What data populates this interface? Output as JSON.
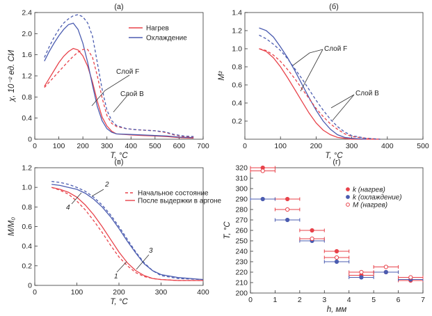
{
  "chart_data": [
    {
      "type": "line",
      "panel_label": "(а)",
      "xlabel": "T, °C",
      "ylabel": "χ, 10⁻² ед. СИ",
      "xlim": [
        0,
        700
      ],
      "ylim": [
        0,
        2.4
      ],
      "xticks": [
        0,
        100,
        200,
        300,
        400,
        500,
        600,
        700
      ],
      "yticks": [
        0,
        0.4,
        0.8,
        1.2,
        1.6,
        2.0,
        2.4
      ],
      "ytick_labels": [
        "0",
        "0.4",
        "0.8",
        "1.2",
        "1.6",
        "2.0",
        "2.4"
      ],
      "legend": [
        {
          "label": "Нагрев",
          "color": "#e8424a"
        },
        {
          "label": "Охлаждение",
          "color": "#4b5cb0"
        }
      ],
      "annotations": [
        "Слой F",
        "Слой B"
      ],
      "series": [
        {
          "name": "Нагрев",
          "layer": "Слой F",
          "color": "#e8424a",
          "dashed": false,
          "x": [
            40,
            60,
            80,
            100,
            120,
            140,
            160,
            180,
            200,
            220,
            240,
            260,
            280,
            300,
            320,
            340,
            400,
            450,
            500,
            550,
            600,
            660
          ],
          "y": [
            1.0,
            1.15,
            1.3,
            1.45,
            1.57,
            1.66,
            1.72,
            1.69,
            1.58,
            1.38,
            1.08,
            0.72,
            0.42,
            0.25,
            0.15,
            0.1,
            0.08,
            0.07,
            0.06,
            0.05,
            0.03,
            0.02
          ]
        },
        {
          "name": "Охлаждение",
          "layer": "Слой F",
          "color": "#4b5cb0",
          "dashed": false,
          "x": [
            40,
            60,
            80,
            100,
            120,
            140,
            160,
            180,
            200,
            220,
            240,
            260,
            280,
            300,
            320,
            340,
            400,
            450,
            500,
            550,
            600,
            660
          ],
          "y": [
            1.48,
            1.66,
            1.82,
            1.96,
            2.08,
            2.17,
            2.2,
            2.08,
            1.82,
            1.45,
            1.02,
            0.62,
            0.35,
            0.2,
            0.13,
            0.1,
            0.09,
            0.08,
            0.07,
            0.06,
            0.04,
            0.03
          ]
        },
        {
          "name": "Нагрев",
          "layer": "Слой B",
          "color": "#e8424a",
          "dashed": true,
          "x": [
            40,
            60,
            80,
            100,
            120,
            140,
            160,
            180,
            200,
            220,
            240,
            260,
            280,
            300,
            320,
            340,
            380,
            420,
            460,
            500,
            540,
            580,
            620,
            660
          ],
          "y": [
            0.98,
            1.08,
            1.18,
            1.28,
            1.38,
            1.48,
            1.57,
            1.65,
            1.7,
            1.7,
            1.55,
            1.2,
            0.78,
            0.45,
            0.3,
            0.24,
            0.2,
            0.18,
            0.17,
            0.16,
            0.13,
            0.08,
            0.05,
            0.04
          ]
        },
        {
          "name": "Охлаждение",
          "layer": "Слой B",
          "color": "#4b5cb0",
          "dashed": true,
          "x": [
            40,
            60,
            80,
            100,
            120,
            140,
            160,
            180,
            200,
            220,
            240,
            260,
            280,
            300,
            320,
            340,
            380,
            420,
            460,
            500,
            540,
            580,
            620,
            660
          ],
          "y": [
            1.55,
            1.75,
            1.93,
            2.08,
            2.2,
            2.28,
            2.34,
            2.36,
            2.32,
            2.2,
            1.95,
            1.45,
            0.95,
            0.55,
            0.35,
            0.26,
            0.2,
            0.18,
            0.17,
            0.16,
            0.14,
            0.09,
            0.06,
            0.05
          ]
        }
      ]
    },
    {
      "type": "line",
      "panel_label": "(б)",
      "xlabel": "T, °C",
      "ylabel": "M²",
      "xlim": [
        0,
        500
      ],
      "ylim": [
        0,
        1.4
      ],
      "xticks": [
        0,
        100,
        200,
        300,
        400,
        500
      ],
      "yticks": [
        0.2,
        0.4,
        0.6,
        0.8,
        1.0,
        1.2,
        1.4
      ],
      "ytick_labels": [
        "0.2",
        "0.4",
        "0.6",
        "0.8",
        "1.0",
        "1.2",
        "1.4"
      ],
      "annotations": [
        "Слой F",
        "Слой B"
      ],
      "series": [
        {
          "name": "Нагрев",
          "layer": "Слой F",
          "color": "#e8424a",
          "dashed": false,
          "x": [
            40,
            60,
            80,
            100,
            120,
            140,
            160,
            180,
            200,
            220,
            240,
            260,
            280,
            300,
            340,
            380
          ],
          "y": [
            1.0,
            0.97,
            0.9,
            0.8,
            0.68,
            0.55,
            0.42,
            0.29,
            0.18,
            0.1,
            0.05,
            0.02,
            0.01,
            0.0,
            0.0,
            0.0
          ]
        },
        {
          "name": "Охлаждение",
          "layer": "Слой F",
          "color": "#4b5cb0",
          "dashed": false,
          "x": [
            40,
            60,
            80,
            100,
            120,
            140,
            160,
            180,
            200,
            220,
            240,
            260,
            280,
            300,
            340
          ],
          "y": [
            1.23,
            1.2,
            1.13,
            1.02,
            0.9,
            0.76,
            0.61,
            0.46,
            0.32,
            0.2,
            0.11,
            0.05,
            0.02,
            0.01,
            0.0
          ]
        },
        {
          "name": "Нагрев",
          "layer": "Слой B",
          "color": "#e8424a",
          "dashed": true,
          "x": [
            40,
            60,
            80,
            100,
            120,
            140,
            160,
            180,
            200,
            220,
            240,
            260,
            280,
            300,
            340,
            380
          ],
          "y": [
            1.0,
            0.98,
            0.93,
            0.86,
            0.77,
            0.67,
            0.56,
            0.45,
            0.34,
            0.25,
            0.17,
            0.11,
            0.06,
            0.03,
            0.01,
            0.0
          ]
        },
        {
          "name": "Охлаждение",
          "layer": "Слой B",
          "color": "#4b5cb0",
          "dashed": true,
          "x": [
            40,
            60,
            80,
            100,
            120,
            140,
            160,
            180,
            200,
            220,
            240,
            260,
            280,
            300,
            340,
            380
          ],
          "y": [
            1.15,
            1.11,
            1.05,
            0.98,
            0.89,
            0.78,
            0.67,
            0.55,
            0.43,
            0.32,
            0.22,
            0.14,
            0.08,
            0.04,
            0.01,
            0.0
          ]
        }
      ]
    },
    {
      "type": "line",
      "panel_label": "(в)",
      "xlabel": "T, °C",
      "ylabel": "M/M₀",
      "xlim": [
        0,
        400
      ],
      "ylim": [
        0,
        1.2
      ],
      "xticks": [
        0,
        100,
        200,
        300,
        400
      ],
      "yticks": [
        0,
        0.2,
        0.4,
        0.6,
        0.8,
        1.0,
        1.2
      ],
      "ytick_labels": [
        "0",
        "0.2",
        "0.4",
        "0.6",
        "0.8",
        "1.0",
        "1.2"
      ],
      "legend": [
        {
          "label": "Начальное состояние",
          "color": "#e8424a",
          "dashed": true
        },
        {
          "label": "После выдержки в аргоне",
          "color": "#e8424a",
          "dashed": false
        }
      ],
      "curve_labels": [
        "1",
        "2",
        "3",
        "4"
      ],
      "series": [
        {
          "label": "1",
          "color": "#e8424a",
          "dashed": true,
          "x": [
            40,
            60,
            80,
            100,
            120,
            140,
            160,
            180,
            200,
            220,
            240,
            260,
            280,
            300,
            340,
            400
          ],
          "y": [
            1.0,
            0.97,
            0.93,
            0.86,
            0.77,
            0.66,
            0.54,
            0.41,
            0.29,
            0.2,
            0.13,
            0.09,
            0.07,
            0.06,
            0.05,
            0.05
          ]
        },
        {
          "label": "2",
          "color": "#4b5cb0",
          "dashed": true,
          "x": [
            40,
            60,
            80,
            100,
            120,
            140,
            160,
            180,
            200,
            220,
            240,
            260,
            280,
            300,
            340,
            400
          ],
          "y": [
            1.06,
            1.05,
            1.03,
            1.0,
            0.96,
            0.9,
            0.82,
            0.72,
            0.6,
            0.47,
            0.34,
            0.23,
            0.15,
            0.1,
            0.07,
            0.06
          ]
        },
        {
          "label": "3",
          "color": "#4b5cb0",
          "dashed": false,
          "x": [
            40,
            60,
            80,
            100,
            120,
            140,
            160,
            180,
            200,
            220,
            240,
            260,
            280,
            300,
            340,
            400
          ],
          "y": [
            1.03,
            1.02,
            1.0,
            0.98,
            0.94,
            0.88,
            0.8,
            0.7,
            0.58,
            0.45,
            0.33,
            0.22,
            0.15,
            0.11,
            0.08,
            0.06
          ]
        },
        {
          "label": "4",
          "color": "#e8424a",
          "dashed": false,
          "x": [
            40,
            60,
            80,
            100,
            120,
            140,
            160,
            180,
            200,
            220,
            240,
            260,
            280,
            300,
            340,
            400
          ],
          "y": [
            1.0,
            0.98,
            0.95,
            0.9,
            0.82,
            0.72,
            0.6,
            0.47,
            0.34,
            0.23,
            0.15,
            0.1,
            0.07,
            0.06,
            0.05,
            0.05
          ]
        }
      ]
    },
    {
      "type": "scatter",
      "panel_label": "(г)",
      "xlabel": "h, мм",
      "ylabel": "T, °C",
      "xlim": [
        0,
        7
      ],
      "ylim": [
        200,
        320
      ],
      "xticks": [
        0,
        1,
        2,
        3,
        4,
        5,
        6,
        7
      ],
      "yticks": [
        200,
        210,
        220,
        230,
        240,
        250,
        260,
        270,
        280,
        290,
        300,
        310,
        320
      ],
      "legend_position": "top-right",
      "series": [
        {
          "name": "k (нагрев)",
          "color": "#e8424a",
          "marker": "filled",
          "x": [
            0.5,
            1.5,
            2.5,
            3.5,
            4.5,
            5.5,
            6.5
          ],
          "y": [
            320,
            290,
            260,
            240,
            217,
            220,
            212
          ],
          "xerr": 0.5
        },
        {
          "name": "k (охлаждение)",
          "color": "#4b5cb0",
          "marker": "filled",
          "x": [
            0.5,
            1.5,
            2.5,
            3.5,
            4.5,
            5.5,
            6.5
          ],
          "y": [
            290,
            270,
            250,
            230,
            215,
            220,
            213
          ],
          "xerr": 0.5
        },
        {
          "name": "M (нагрев)",
          "color": "#e8424a",
          "marker": "open",
          "x": [
            0.5,
            1.5,
            2.5,
            3.5,
            4.5,
            5.5,
            6.5
          ],
          "y": [
            317,
            280,
            252,
            234,
            220,
            225,
            215
          ],
          "xerr": 0.5
        }
      ]
    }
  ]
}
